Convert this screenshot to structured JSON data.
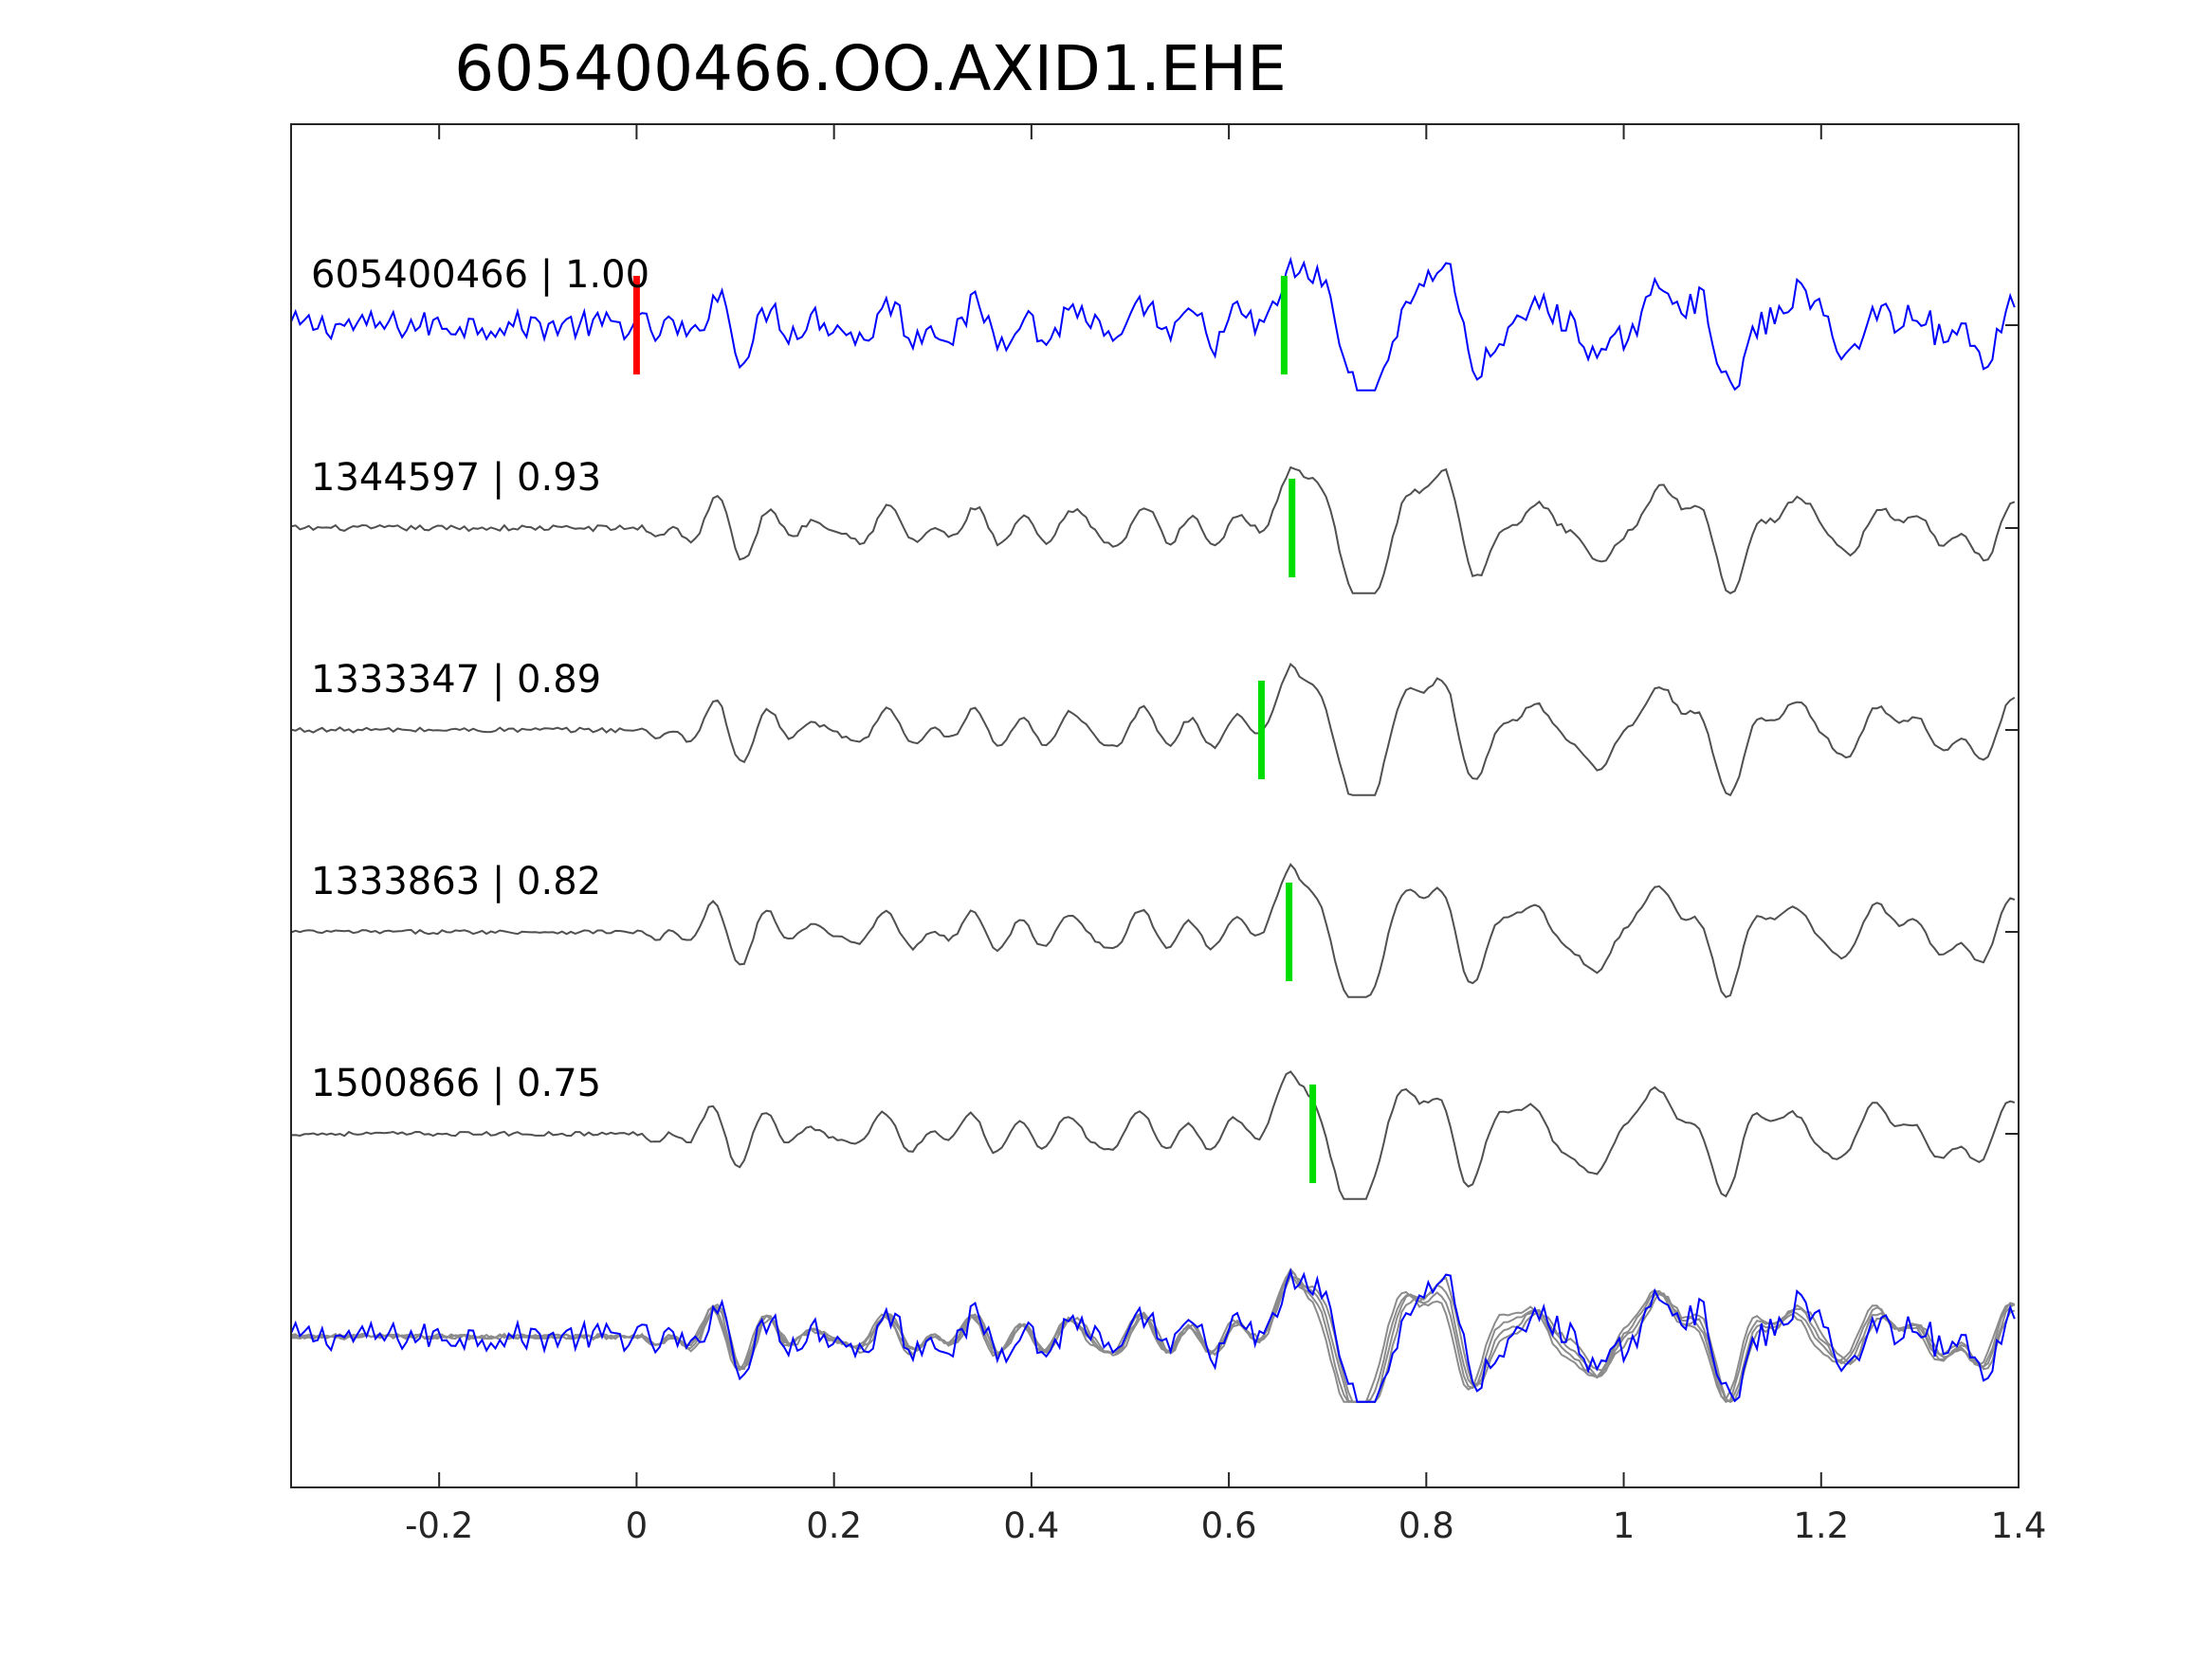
{
  "chart_data": {
    "type": "line",
    "title": "605400466.OO.AXID1.EHE",
    "xlabel": "",
    "ylabel": "",
    "xlim": [
      -0.35,
      1.4
    ],
    "x_ticks": [
      -0.2,
      0,
      0.2,
      0.4,
      0.6,
      0.8,
      1,
      1.2,
      1.4
    ],
    "x_tick_labels": [
      "-0.2",
      "0",
      "0.2",
      "0.4",
      "0.6",
      "0.8",
      "1",
      "1.2",
      "1.4"
    ],
    "grid": false,
    "colors": {
      "template": "#0000ff",
      "match": "#505050",
      "overlay": "#8c8c8c",
      "p_pick": "#ff0000",
      "s_pick": "#00dd00",
      "axes": "#262626"
    },
    "origin_pick_time": 0.0,
    "traces": [
      {
        "name": "605400466",
        "label": "605400466 | 1.00",
        "correlation": 1.0,
        "color": "template",
        "s_pick_time": 0.656,
        "noise_level": 0.34
      },
      {
        "name": "1344597",
        "label": "1344597 | 0.93",
        "correlation": 0.93,
        "color": "match",
        "s_pick_time": 0.664,
        "noise_level": 0.07
      },
      {
        "name": "1333347",
        "label": "1333347 | 0.89",
        "correlation": 0.89,
        "color": "match",
        "s_pick_time": 0.633,
        "noise_level": 0.06
      },
      {
        "name": "1333863",
        "label": "1333863 | 0.82",
        "correlation": 0.82,
        "color": "match",
        "s_pick_time": 0.661,
        "noise_level": 0.05
      },
      {
        "name": "1500866",
        "label": "1500866 | 0.75",
        "correlation": 0.75,
        "color": "match",
        "s_pick_time": 0.685,
        "noise_level": 0.05
      }
    ],
    "overlay": {
      "present": true
    }
  }
}
